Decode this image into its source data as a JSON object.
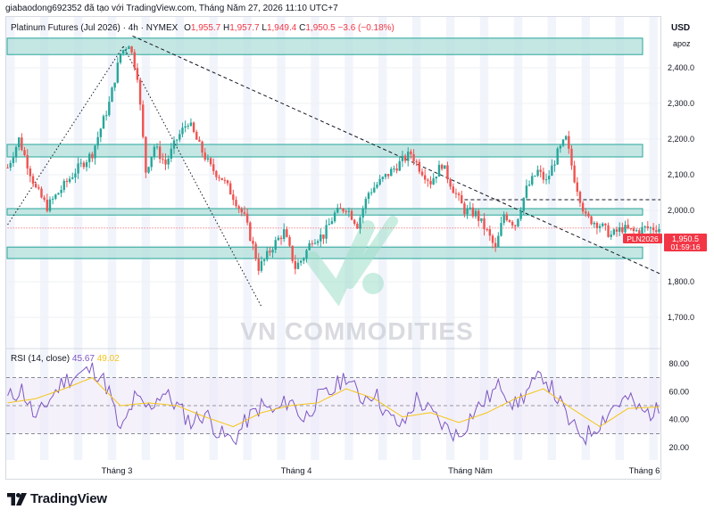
{
  "author_line": "giabaodong692352 đã tạo với TradingView.com, Tháng Năm 27, 2026 11:10 UTC+7",
  "legend": {
    "symbol": "Platinum Futures (Jul 2026) · 4h · NYMEX",
    "o_label": "O",
    "o": "1,955.7",
    "h_label": "H",
    "h": "1,957.7",
    "l_label": "L",
    "l": "1,949.4",
    "c_label": "C",
    "c": "1,950.5",
    "change": "−3.6 (−0.18%)"
  },
  "currency": "USD",
  "scale_mode": "apoz",
  "watermark": "VN COMMODITIES",
  "brand": "TradingView",
  "price_tag": {
    "symbol": "PLN2026",
    "price": "1,950.5",
    "countdown": "01:59:16"
  },
  "colors": {
    "up": "#26a69a",
    "down": "#ef5350",
    "zone": "#b2dfdb",
    "rsi": "#7e57c2",
    "rsi_ma": "#f5c518"
  },
  "chart_data": {
    "type": "candlestick",
    "y_ticks": [
      "2,400.0",
      "2,300.0",
      "2,200.0",
      "2,100.0",
      "2,000.0",
      "1,900.0",
      "1,800.0",
      "1,700.0"
    ],
    "y_tick_values": [
      2400,
      2300,
      2200,
      2100,
      2000,
      1900,
      1800,
      1700
    ],
    "ylim": [
      1640,
      2490
    ],
    "x_labels": [
      "Tháng 3",
      "Tháng 4",
      "Tháng Năm",
      "Tháng 6"
    ],
    "price_path": [
      [
        0,
        2120
      ],
      [
        4,
        2200
      ],
      [
        10,
        2060
      ],
      [
        14,
        2010
      ],
      [
        18,
        2050
      ],
      [
        24,
        2110
      ],
      [
        30,
        2160
      ],
      [
        36,
        2300
      ],
      [
        40,
        2440
      ],
      [
        43,
        2470
      ],
      [
        46,
        2380
      ],
      [
        49,
        2110
      ],
      [
        52,
        2180
      ],
      [
        56,
        2130
      ],
      [
        60,
        2200
      ],
      [
        64,
        2250
      ],
      [
        68,
        2180
      ],
      [
        72,
        2120
      ],
      [
        76,
        2090
      ],
      [
        80,
        2040
      ],
      [
        84,
        1980
      ],
      [
        87,
        1900
      ],
      [
        89,
        1840
      ],
      [
        91,
        1860
      ],
      [
        94,
        1900
      ],
      [
        98,
        1940
      ],
      [
        102,
        1840
      ],
      [
        105,
        1870
      ],
      [
        108,
        1920
      ],
      [
        112,
        1930
      ],
      [
        116,
        1990
      ],
      [
        120,
        2010
      ],
      [
        124,
        1960
      ],
      [
        128,
        2050
      ],
      [
        132,
        2080
      ],
      [
        136,
        2110
      ],
      [
        140,
        2140
      ],
      [
        143,
        2160
      ],
      [
        146,
        2120
      ],
      [
        150,
        2080
      ],
      [
        154,
        2130
      ],
      [
        158,
        2060
      ],
      [
        162,
        2000
      ],
      [
        166,
        1990
      ],
      [
        170,
        1940
      ],
      [
        173,
        1890
      ],
      [
        176,
        1990
      ],
      [
        180,
        1960
      ],
      [
        184,
        2060
      ],
      [
        188,
        2110
      ],
      [
        191,
        2080
      ],
      [
        195,
        2160
      ],
      [
        198,
        2200
      ],
      [
        201,
        2090
      ],
      [
        205,
        1980
      ],
      [
        210,
        1960
      ],
      [
        214,
        1930
      ],
      [
        218,
        1950
      ],
      [
        222,
        1940
      ],
      [
        226,
        1950
      ],
      [
        230,
        1950.5
      ]
    ],
    "zones": [
      {
        "from": 2437,
        "to": 2483
      },
      {
        "from": 2150,
        "to": 2185
      },
      {
        "from": 1987,
        "to": 2005
      },
      {
        "from": 1865,
        "to": 1897
      }
    ],
    "trendlines": [
      {
        "style": "dashed",
        "from": [
          16,
          2590
        ],
        "to": [
          232,
          1820
        ]
      },
      {
        "style": "dotted",
        "from": [
          0,
          1960
        ],
        "to": [
          41,
          2460
        ]
      },
      {
        "style": "dotted",
        "from": [
          41,
          2460
        ],
        "to": [
          90,
          1730
        ]
      }
    ],
    "levels": [
      {
        "style": "dashed",
        "value": 2030,
        "from_x": 162,
        "to_x": 232
      },
      {
        "style": "dotted",
        "value": 1950.5,
        "from_x": 0,
        "to_x": 232
      }
    ],
    "rsi": {
      "label": "RSI (14, close)",
      "value": "45.67",
      "ma_value": "49.02",
      "y_ticks": [
        "80.00",
        "60.00",
        "40.00",
        "20.00"
      ],
      "y_tick_values": [
        80,
        60,
        40,
        20
      ],
      "ylim": [
        15,
        85
      ],
      "band": [
        30,
        70
      ],
      "mid": 50,
      "path": [
        [
          0,
          55
        ],
        [
          5,
          62
        ],
        [
          10,
          40
        ],
        [
          15,
          55
        ],
        [
          20,
          68
        ],
        [
          25,
          72
        ],
        [
          30,
          76
        ],
        [
          33,
          72
        ],
        [
          36,
          60
        ],
        [
          40,
          30
        ],
        [
          45,
          55
        ],
        [
          50,
          48
        ],
        [
          55,
          60
        ],
        [
          60,
          50
        ],
        [
          65,
          38
        ],
        [
          70,
          45
        ],
        [
          75,
          30
        ],
        [
          80,
          25
        ],
        [
          85,
          40
        ],
        [
          90,
          50
        ],
        [
          95,
          45
        ],
        [
          100,
          55
        ],
        [
          105,
          40
        ],
        [
          110,
          55
        ],
        [
          115,
          60
        ],
        [
          120,
          72
        ],
        [
          125,
          55
        ],
        [
          130,
          60
        ],
        [
          135,
          42
        ],
        [
          140,
          35
        ],
        [
          145,
          55
        ],
        [
          150,
          45
        ],
        [
          155,
          35
        ],
        [
          160,
          28
        ],
        [
          165,
          45
        ],
        [
          170,
          55
        ],
        [
          175,
          65
        ],
        [
          180,
          50
        ],
        [
          185,
          62
        ],
        [
          190,
          72
        ],
        [
          195,
          55
        ],
        [
          200,
          35
        ],
        [
          205,
          28
        ],
        [
          210,
          38
        ],
        [
          215,
          50
        ],
        [
          220,
          55
        ],
        [
          225,
          45
        ],
        [
          230,
          45.67
        ]
      ],
      "ma_path": [
        [
          0,
          52
        ],
        [
          10,
          55
        ],
        [
          20,
          62
        ],
        [
          30,
          70
        ],
        [
          40,
          50
        ],
        [
          50,
          52
        ],
        [
          60,
          50
        ],
        [
          70,
          42
        ],
        [
          80,
          35
        ],
        [
          90,
          45
        ],
        [
          100,
          50
        ],
        [
          110,
          52
        ],
        [
          120,
          62
        ],
        [
          130,
          55
        ],
        [
          140,
          42
        ],
        [
          150,
          45
        ],
        [
          160,
          38
        ],
        [
          170,
          45
        ],
        [
          180,
          55
        ],
        [
          190,
          62
        ],
        [
          200,
          48
        ],
        [
          210,
          35
        ],
        [
          220,
          48
        ],
        [
          230,
          49.02
        ]
      ]
    }
  }
}
